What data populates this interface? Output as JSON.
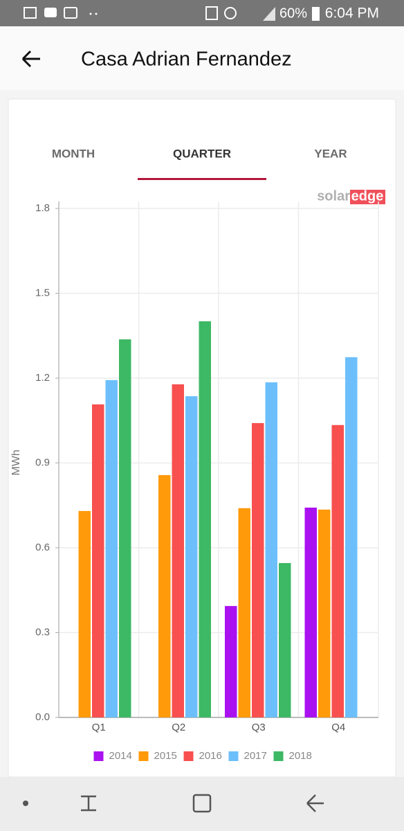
{
  "status_bar": {
    "battery": "60%",
    "time": "6:04 PM"
  },
  "header": {
    "title": "Casa Adrian Fernandez"
  },
  "tabs": [
    "MONTH",
    "QUARTER",
    "YEAR"
  ],
  "logo": {
    "solar": "solar",
    "edge": "edge"
  },
  "chart_data": {
    "type": "bar",
    "y_label": "MWh",
    "categories": [
      "Q1",
      "Q2",
      "Q3",
      "Q4"
    ],
    "series": [
      {
        "name": "2014",
        "color": "#aa11f0",
        "values": [
          null,
          null,
          0.394,
          0.742
        ]
      },
      {
        "name": "2015",
        "color": "#ff9a0a",
        "values": [
          0.73,
          0.857,
          0.74,
          0.735
        ]
      },
      {
        "name": "2016",
        "color": "#f7504f",
        "values": [
          1.107,
          1.178,
          1.041,
          1.034
        ]
      },
      {
        "name": "2017",
        "color": "#6cbffb",
        "values": [
          1.193,
          1.136,
          1.185,
          1.274
        ]
      },
      {
        "name": "2018",
        "color": "#3db864",
        "values": [
          1.337,
          1.401,
          0.546,
          null
        ]
      }
    ],
    "ylim": [
      0,
      1.8
    ],
    "yticks": [
      {
        "value": 0,
        "label": "0.0"
      },
      0.3,
      0.6,
      0.9,
      1.2,
      1.5,
      1.8
    ],
    "grid": true
  }
}
